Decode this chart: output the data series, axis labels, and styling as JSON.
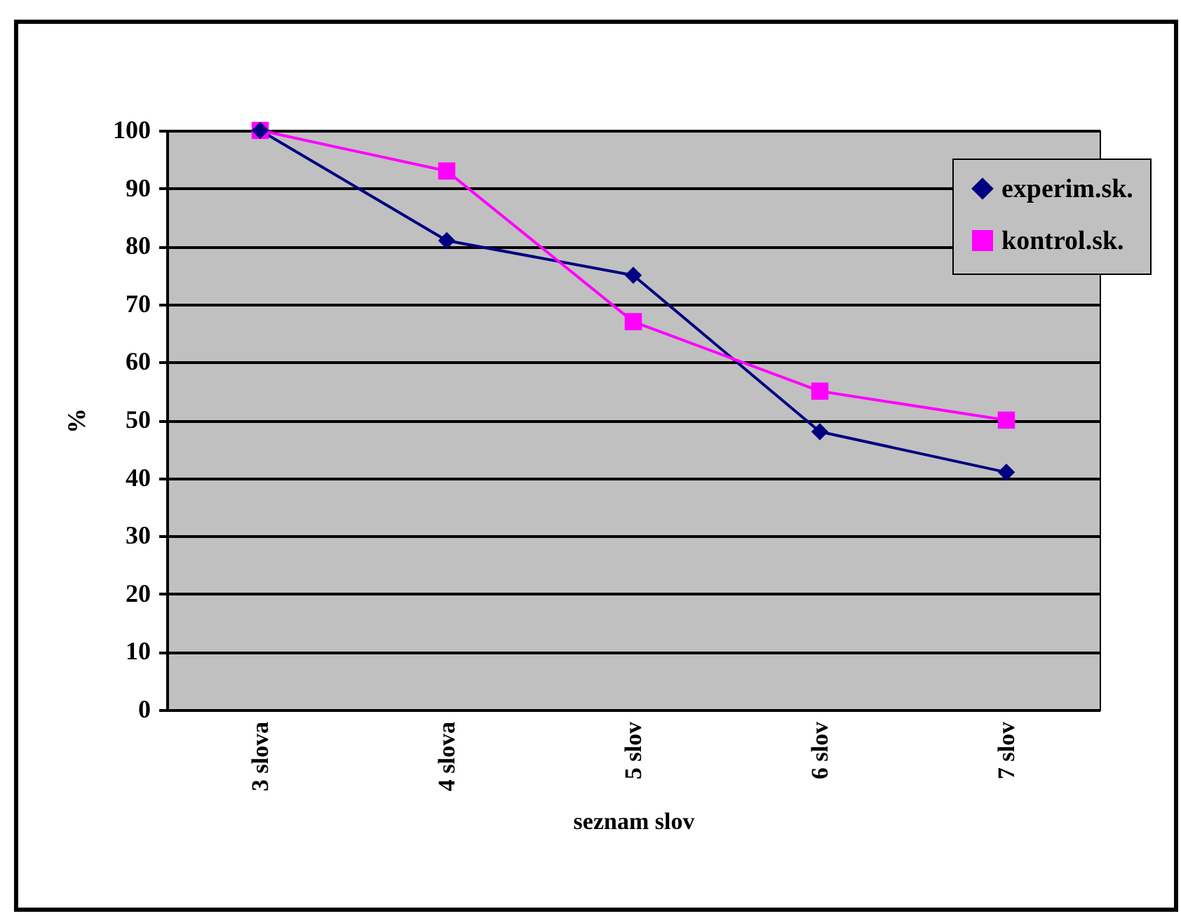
{
  "chart_data": {
    "type": "line",
    "xlabel": "seznam slov",
    "ylabel": "%",
    "categories": [
      "3 slova",
      "4 slova",
      "5 slov",
      "6 slov",
      "7 slov"
    ],
    "series": [
      {
        "name": "experim.sk.",
        "color": "#000080",
        "marker": "diamond",
        "values": [
          100,
          81,
          75,
          48,
          41
        ]
      },
      {
        "name": "kontrol.sk.",
        "color": "#ff00ff",
        "marker": "square",
        "values": [
          100,
          93,
          67,
          55,
          50
        ]
      }
    ],
    "ylim": [
      0,
      100
    ],
    "yticks": [
      0,
      10,
      20,
      30,
      40,
      50,
      60,
      70,
      80,
      90,
      100
    ],
    "grid": "y",
    "legend": "top right",
    "line_style": "solid"
  }
}
